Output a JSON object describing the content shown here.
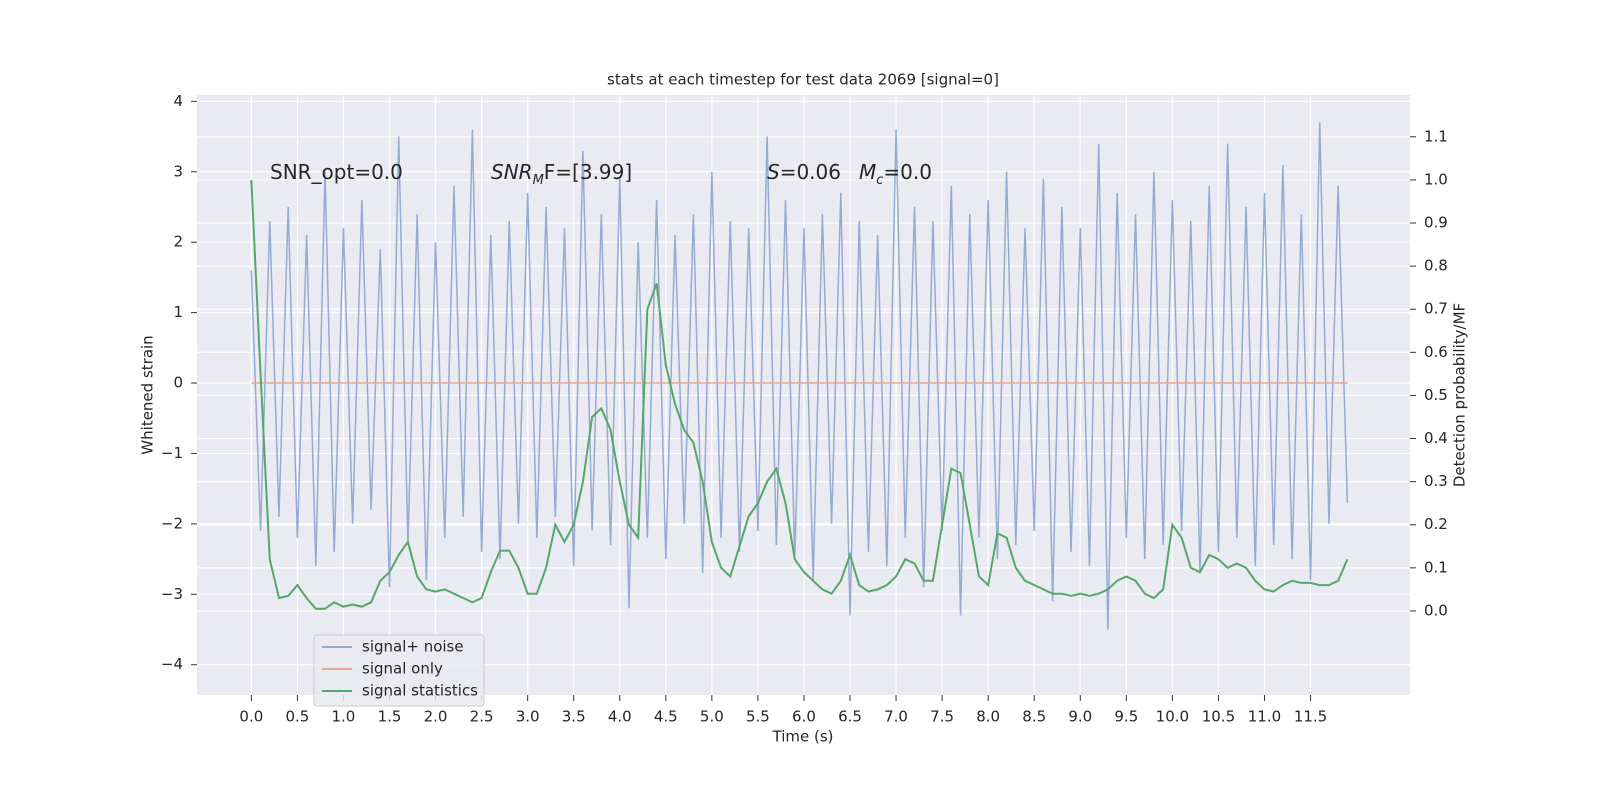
{
  "chart_data": {
    "type": "line",
    "title": "stats at each timestep for test data 2069 [signal=0]",
    "xlabel": "Time (s)",
    "ylabel": "Whitened strain",
    "y2label": "Detection probability/MF",
    "annotations": [
      {
        "parts": [
          "SNR_opt=0.0"
        ]
      },
      {
        "parts": [
          "SNR",
          "M",
          "F=[3.99]"
        ]
      },
      {
        "parts": [
          "S",
          "=0.06",
          "M",
          "c",
          "=0.0"
        ]
      }
    ],
    "x": [
      0,
      0.1,
      0.2,
      0.3,
      0.4,
      0.5,
      0.6,
      0.7,
      0.8,
      0.9,
      1,
      1.1,
      1.2,
      1.3,
      1.4,
      1.5,
      1.6,
      1.7,
      1.8,
      1.9,
      2,
      2.1,
      2.2,
      2.3,
      2.4,
      2.5,
      2.6,
      2.7,
      2.8,
      2.9,
      3,
      3.1,
      3.2,
      3.3,
      3.4,
      3.5,
      3.6,
      3.7,
      3.8,
      3.9,
      4,
      4.1,
      4.2,
      4.3,
      4.4,
      4.5,
      4.6,
      4.7,
      4.8,
      4.9,
      5,
      5.1,
      5.2,
      5.3,
      5.4,
      5.5,
      5.6,
      5.7,
      5.8,
      5.9,
      6,
      6.1,
      6.2,
      6.3,
      6.4,
      6.5,
      6.6,
      6.7,
      6.8,
      6.9,
      7,
      7.1,
      7.2,
      7.3,
      7.4,
      7.5,
      7.6,
      7.7,
      7.8,
      7.9,
      8,
      8.1,
      8.2,
      8.3,
      8.4,
      8.5,
      8.6,
      8.7,
      8.8,
      8.9,
      9,
      9.1,
      9.2,
      9.3,
      9.4,
      9.5,
      9.6,
      9.7,
      9.8,
      9.9,
      10,
      10.1,
      10.2,
      10.3,
      10.4,
      10.5,
      10.6,
      10.7,
      10.8,
      10.9,
      11,
      11.1,
      11.2,
      11.3,
      11.4,
      11.5,
      11.6,
      11.7,
      11.8,
      11.9
    ],
    "series": [
      {
        "name": "signal+ noise",
        "color": "#98aad0",
        "values": [
          1.6,
          -2.1,
          2.3,
          -1.9,
          2.5,
          -2.2,
          2.1,
          -2.6,
          3.0,
          -2.4,
          2.2,
          -2.0,
          2.6,
          -1.8,
          1.9,
          -2.9,
          3.5,
          -2.3,
          2.4,
          -2.8,
          2.0,
          -2.2,
          2.8,
          -1.9,
          3.6,
          -2.4,
          2.1,
          -2.5,
          2.3,
          -2.0,
          2.7,
          -2.2,
          2.5,
          -1.9,
          2.2,
          -2.6,
          3.3,
          -2.1,
          2.4,
          -2.3,
          2.9,
          -3.2,
          2.0,
          -2.2,
          2.6,
          -2.5,
          2.1,
          -2.0,
          2.4,
          -2.7,
          3.0,
          -2.2,
          2.3,
          -2.4,
          2.2,
          -2.1,
          3.5,
          -2.3,
          2.6,
          -2.5,
          2.2,
          -2.8,
          2.4,
          -2.0,
          2.7,
          -3.3,
          2.3,
          -2.4,
          2.1,
          -2.6,
          3.6,
          -2.2,
          2.5,
          -2.9,
          2.3,
          -2.1,
          2.8,
          -3.3,
          2.4,
          -2.2,
          2.6,
          -2.5,
          3.0,
          -2.3,
          2.2,
          -2.1,
          2.9,
          -3.1,
          2.5,
          -2.4,
          2.2,
          -2.6,
          3.4,
          -3.5,
          2.7,
          -2.2,
          2.4,
          -2.5,
          3.0,
          -2.3,
          2.6,
          -2.1,
          2.3,
          -2.7,
          2.8,
          -2.4,
          3.4,
          -2.2,
          2.5,
          -2.6,
          2.7,
          -2.3,
          3.1,
          -2.5,
          2.4,
          -2.8,
          3.7,
          -2.0,
          2.8,
          -1.7
        ]
      },
      {
        "name": "signal only",
        "color": "#e8a98a",
        "values": [
          0,
          0,
          0,
          0,
          0,
          0,
          0,
          0,
          0,
          0,
          0,
          0,
          0,
          0,
          0,
          0,
          0,
          0,
          0,
          0,
          0,
          0,
          0,
          0,
          0,
          0,
          0,
          0,
          0,
          0,
          0,
          0,
          0,
          0,
          0,
          0,
          0,
          0,
          0,
          0,
          0,
          0,
          0,
          0,
          0,
          0,
          0,
          0,
          0,
          0,
          0,
          0,
          0,
          0,
          0,
          0,
          0,
          0,
          0,
          0,
          0,
          0,
          0,
          0,
          0,
          0,
          0,
          0,
          0,
          0,
          0,
          0,
          0,
          0,
          0,
          0,
          0,
          0,
          0,
          0,
          0,
          0,
          0,
          0,
          0,
          0,
          0,
          0,
          0,
          0,
          0,
          0,
          0,
          0,
          0,
          0,
          0,
          0,
          0,
          0,
          0,
          0,
          0,
          0,
          0,
          0,
          0,
          0,
          0,
          0,
          0,
          0,
          0,
          0,
          0,
          0,
          0,
          0,
          0,
          0
        ]
      },
      {
        "name": "signal statistics",
        "color": "#55a868",
        "axis": "y2",
        "values": [
          1.0,
          0.55,
          0.12,
          0.03,
          0.035,
          0.06,
          0.03,
          0.005,
          0.005,
          0.02,
          0.01,
          0.015,
          0.01,
          0.02,
          0.07,
          0.09,
          0.13,
          0.16,
          0.08,
          0.05,
          0.045,
          0.05,
          0.04,
          0.03,
          0.02,
          0.03,
          0.09,
          0.14,
          0.14,
          0.1,
          0.04,
          0.04,
          0.1,
          0.2,
          0.16,
          0.2,
          0.3,
          0.45,
          0.47,
          0.42,
          0.3,
          0.2,
          0.17,
          0.7,
          0.76,
          0.57,
          0.48,
          0.42,
          0.39,
          0.3,
          0.16,
          0.1,
          0.08,
          0.15,
          0.22,
          0.25,
          0.3,
          0.33,
          0.25,
          0.12,
          0.09,
          0.07,
          0.05,
          0.04,
          0.07,
          0.13,
          0.06,
          0.045,
          0.05,
          0.06,
          0.08,
          0.12,
          0.11,
          0.07,
          0.07,
          0.2,
          0.33,
          0.32,
          0.2,
          0.08,
          0.06,
          0.18,
          0.17,
          0.1,
          0.07,
          0.06,
          0.05,
          0.04,
          0.04,
          0.035,
          0.04,
          0.035,
          0.04,
          0.05,
          0.07,
          0.08,
          0.07,
          0.04,
          0.03,
          0.05,
          0.2,
          0.17,
          0.1,
          0.09,
          0.13,
          0.12,
          0.1,
          0.11,
          0.1,
          0.07,
          0.05,
          0.045,
          0.06,
          0.07,
          0.065,
          0.065,
          0.06,
          0.06,
          0.07,
          0.12
        ]
      }
    ],
    "xlim": [
      -0.59,
      12.58
    ],
    "xticks": [
      {
        "value": 0,
        "label": "0.0"
      },
      0.5,
      {
        "value": 1,
        "label": "1.0"
      },
      1.5,
      {
        "value": 2,
        "label": "2.0"
      },
      2.5,
      {
        "value": 3,
        "label": "3.0"
      },
      3.5,
      {
        "value": 4,
        "label": "4.0"
      },
      4.5,
      {
        "value": 5,
        "label": "5.0"
      },
      5.5,
      {
        "value": 6,
        "label": "6.0"
      },
      6.5,
      {
        "value": 7,
        "label": "7.0"
      },
      7.5,
      {
        "value": 8,
        "label": "8.0"
      },
      8.5,
      {
        "value": 9,
        "label": "9.0"
      },
      9.5,
      {
        "value": 10,
        "label": "10.0"
      },
      10.5,
      {
        "value": 11,
        "label": "11.0"
      },
      11.5
    ],
    "ylim": [
      -4.43,
      4.09
    ],
    "yticks": [
      {
        "value": -4,
        "label": "−4"
      },
      {
        "value": -3,
        "label": "−3"
      },
      {
        "value": -2,
        "label": "−2"
      },
      {
        "value": -1,
        "label": "−1"
      },
      0,
      1,
      2,
      3,
      4
    ],
    "y2lim": [
      -0.195,
      1.197
    ],
    "y2ticks": [
      {
        "value": 0,
        "label": "0.0"
      },
      0.1,
      0.2,
      0.3,
      0.4,
      0.5,
      0.6,
      0.7,
      0.8,
      0.9,
      {
        "value": 1,
        "label": "1.0"
      },
      1.1
    ],
    "grid": true,
    "legend": "lower left"
  }
}
